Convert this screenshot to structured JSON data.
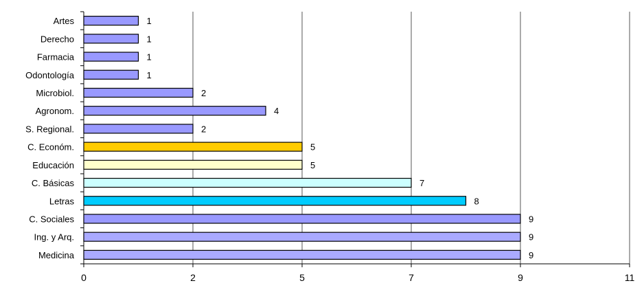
{
  "chart_data": {
    "type": "bar",
    "orientation": "horizontal",
    "title": "",
    "xlabel": "",
    "ylabel": "",
    "xlim": [
      0,
      11
    ],
    "x_ticks": [
      0,
      2,
      5,
      7,
      9,
      11
    ],
    "grid": "vertical",
    "legend": "none",
    "categories": [
      "Artes",
      "Derecho",
      "Farmacia",
      "Odontología",
      "Microbiol.",
      "Agronom.",
      "S. Regional.",
      "C. Económ.",
      "Educación",
      "C. Básicas",
      "Letras",
      "C. Sociales",
      "Ing. y Arq.",
      "Medicina"
    ],
    "values": [
      1,
      1,
      1,
      1,
      2,
      4,
      2,
      5,
      5,
      7,
      8,
      9,
      9,
      9
    ],
    "colors": [
      "#9999ff",
      "#9999ff",
      "#9999ff",
      "#9999ff",
      "#9999ff",
      "#9999ff",
      "#9999ff",
      "#ffcc00",
      "#ffffcc",
      "#ccffff",
      "#00ccff",
      "#9999ff",
      "#aaaaff",
      "#aaaaff"
    ]
  }
}
